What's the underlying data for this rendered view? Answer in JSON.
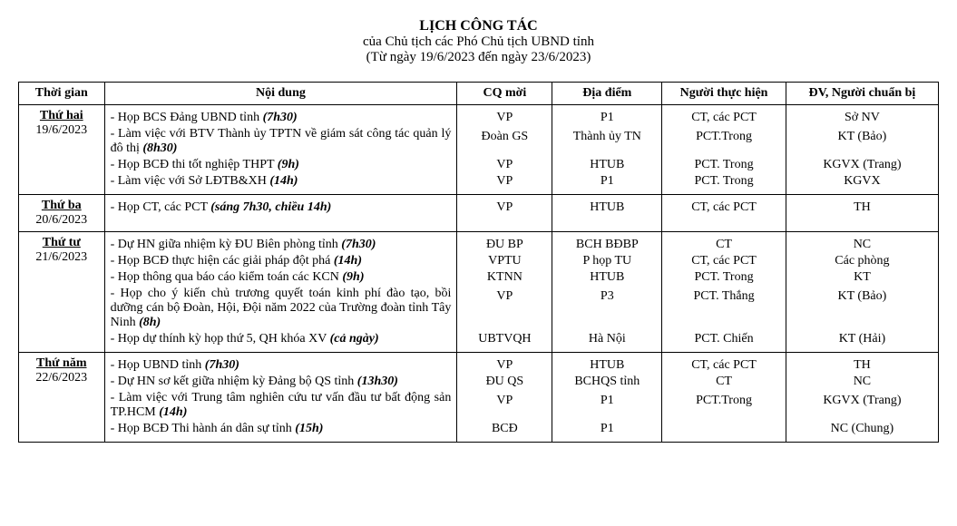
{
  "header": {
    "title": "LỊCH  CÔNG TÁC",
    "subtitle1": "của Chủ tịch các Phó Chủ tịch UBND tỉnh",
    "subtitle2": "(Từ ngày 19/6/2023 đến ngày 23/6/2023)"
  },
  "columns": {
    "time": "Thời gian",
    "content": "Nội dung",
    "cq": "CQ mời",
    "loc": "Địa điểm",
    "person": "Người thực hiện",
    "prep": "ĐV, Người chuẩn bị"
  },
  "rows": [
    {
      "day": "Thứ hai",
      "date": "19/6/2023",
      "items": [
        {
          "text": "- Họp BCS Đảng UBND tỉnh ",
          "time": "(7h30)",
          "cq": "VP",
          "loc": "P1",
          "person": "CT, các PCT",
          "prep": "Sở NV"
        },
        {
          "text": "- Làm việc với BTV Thành ủy TPTN về giám sát công tác quản lý đô thị ",
          "time": "(8h30)",
          "cq": "Đoàn GS",
          "loc": "Thành ủy TN",
          "person": "PCT.Trong",
          "prep": "KT (Bảo)"
        },
        {
          "text": "- Họp BCĐ thi tốt nghiệp THPT ",
          "time": "(9h)",
          "cq": "VP",
          "loc": "HTUB",
          "person": "PCT. Trong",
          "prep": "KGVX (Trang)"
        },
        {
          "text": "- Làm việc với Sở LĐTB&XH ",
          "time": "(14h)",
          "cq": "VP",
          "loc": "P1",
          "person": "PCT. Trong",
          "prep": "KGVX"
        }
      ]
    },
    {
      "day": "Thứ ba",
      "date": "20/6/2023",
      "items": [
        {
          "text": "- Họp CT, các PCT ",
          "time": "(sáng 7h30, chiều 14h)",
          "cq": "VP",
          "loc": "HTUB",
          "person": "CT, các PCT",
          "prep": "TH"
        }
      ]
    },
    {
      "day": "Thứ tư",
      "date": "21/6/2023",
      "items": [
        {
          "text": "- Dự HN giữa nhiệm kỳ ĐU Biên phòng tỉnh ",
          "time": "(7h30)",
          "cq": "ĐU BP",
          "loc": "BCH BĐBP",
          "person": "CT",
          "prep": "NC"
        },
        {
          "text": "- Họp BCĐ thực hiện các giải pháp đột phá ",
          "time": "(14h)",
          "cq": "VPTU",
          "loc": "P họp TU",
          "person": "CT, các PCT",
          "prep": "Các phòng"
        },
        {
          "text": "- Họp thông qua báo cáo kiểm toán các KCN ",
          "time": "(9h)",
          "cq": "KTNN",
          "loc": "HTUB",
          "person": "PCT. Trong",
          "prep": "KT"
        },
        {
          "text": "- Họp cho ý kiến chủ trương quyết toán kinh phí đào tạo, bồi dưỡng cán bộ Đoàn, Hội, Đội năm 2022 của Trường đoàn tỉnh Tây Ninh ",
          "time": "(8h)",
          "cq": "VP",
          "loc": "P3",
          "person": "PCT. Thắng",
          "prep": "KT (Bảo)"
        },
        {
          "text": "- Họp dự thính kỳ họp thứ 5, QH khóa XV ",
          "time": "(cả ngày)",
          "cq": "UBTVQH",
          "loc": "Hà Nội",
          "person": "PCT. Chiến",
          "prep": "KT (Hải)"
        }
      ]
    },
    {
      "day": "Thứ năm",
      "date": "22/6/2023",
      "items": [
        {
          "text": "- Họp UBND tỉnh ",
          "time": "(7h30)",
          "cq": "VP",
          "loc": "HTUB",
          "person": "CT, các PCT",
          "prep": "TH"
        },
        {
          "text": "- Dự HN sơ kết giữa nhiệm kỳ Đảng bộ QS tỉnh ",
          "time": "(13h30)",
          "cq": "ĐU QS",
          "loc": "BCHQS tỉnh",
          "person": "CT",
          "prep": "NC"
        },
        {
          "text": "- Làm việc với Trung tâm nghiên cứu  tư vấn đầu tư bất động sản TP.HCM ",
          "time": "(14h)",
          "cq": "VP",
          "loc": "P1",
          "person": "PCT.Trong",
          "prep": "KGVX (Trang)"
        },
        {
          "text": "- Họp BCĐ Thi hành án dân sự tỉnh ",
          "time": "(15h)",
          "cq": "BCĐ",
          "loc": "P1",
          "person": "",
          "prep": "NC (Chung)"
        }
      ]
    }
  ]
}
